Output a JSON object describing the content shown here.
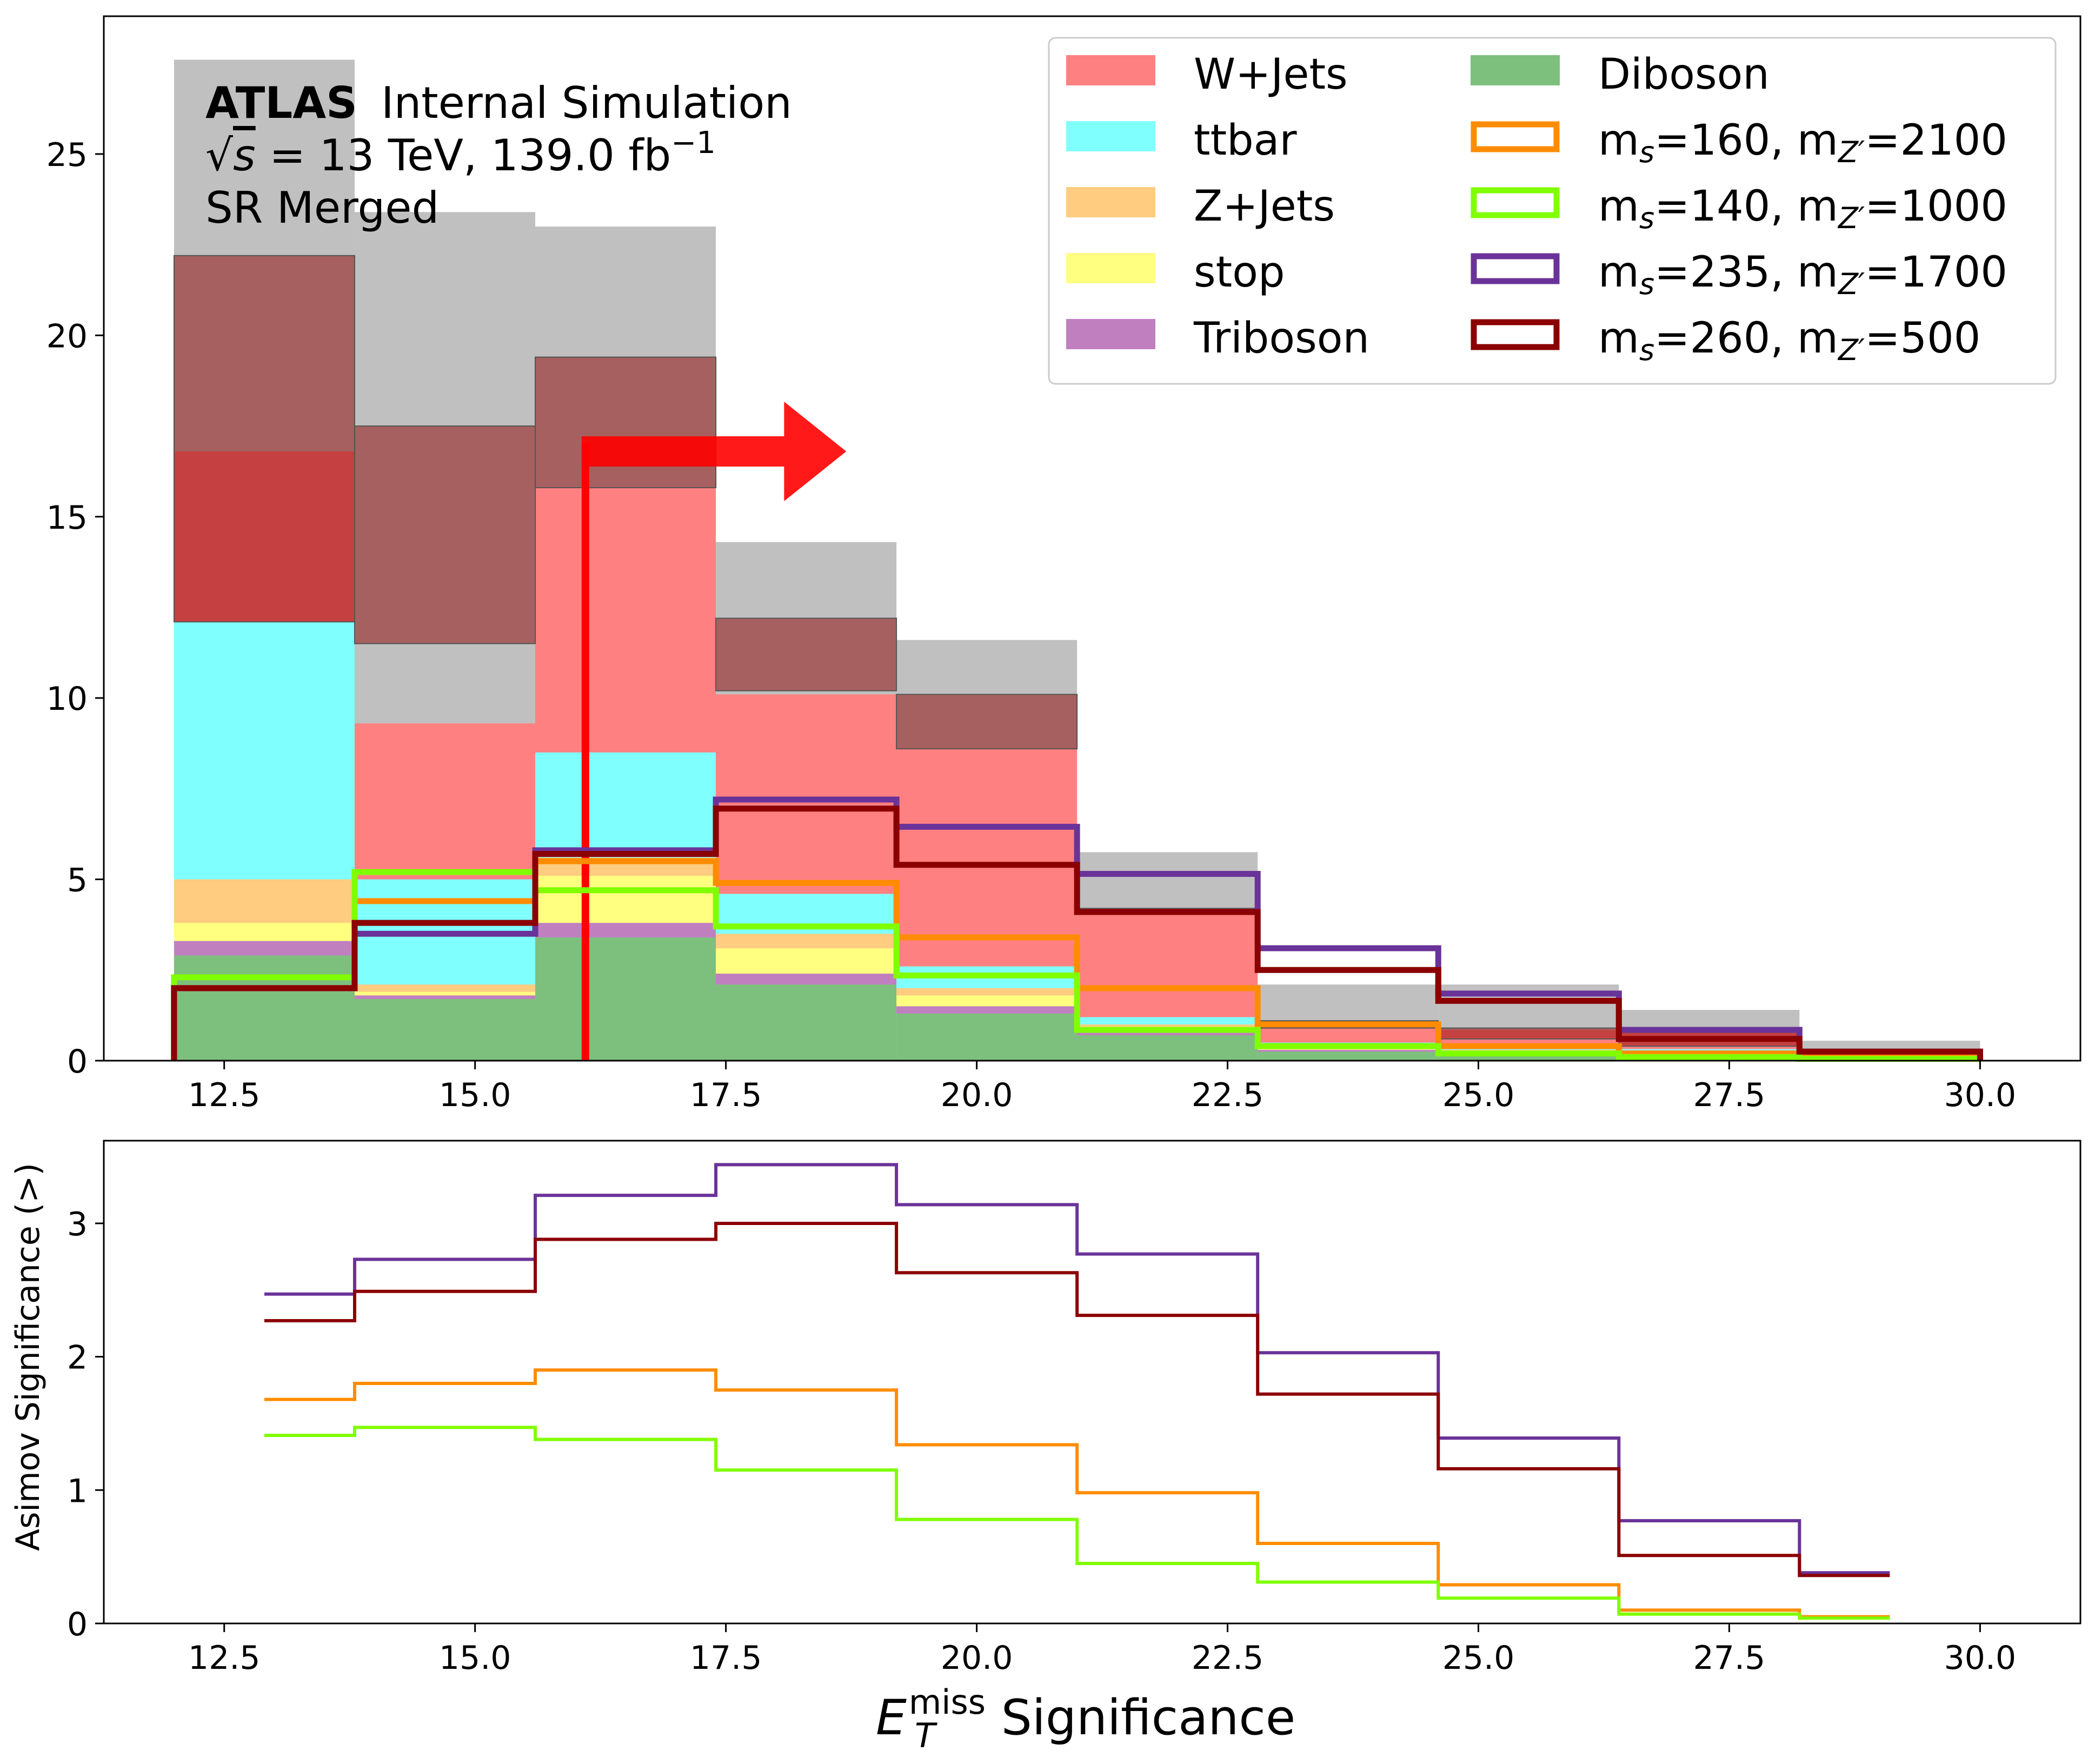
{
  "chart_data": [
    {
      "type": "histogram",
      "panel": "top",
      "annotation": {
        "atlas": "ATLAS",
        "status": "Internal Simulation",
        "energy_prefix": "√",
        "energy_var": "s",
        "energy_rest": " = 13 TeV, 139.0 fb",
        "energy_exp": "−1",
        "region": "SR Merged"
      },
      "bin_edges": [
        12.0,
        13.8,
        15.6,
        17.4,
        19.2,
        21.0,
        22.8,
        24.6,
        26.4,
        28.2,
        30.0
      ],
      "x_ticks": [
        "12.5",
        "15.0",
        "17.5",
        "20.0",
        "22.5",
        "25.0",
        "27.5",
        "30.0"
      ],
      "x_tick_values": [
        12.5,
        15.0,
        17.5,
        20.0,
        22.5,
        25.0,
        27.5,
        30.0
      ],
      "y_ticks": [
        "0",
        "5",
        "10",
        "15",
        "20",
        "25"
      ],
      "y_tick_values": [
        0,
        5,
        10,
        15,
        20,
        25
      ],
      "xlim": [
        11.3,
        31.0
      ],
      "ylim": [
        0,
        28.8
      ],
      "stack": [
        {
          "name": "Diboson",
          "color": "#7dbf7d",
          "values": [
            2.9,
            1.7,
            3.4,
            2.1,
            1.3,
            0.7,
            0.25,
            0.15,
            0.1,
            0.05
          ]
        },
        {
          "name": "Triboson",
          "color": "#c080c0",
          "values": [
            0.4,
            0.1,
            0.4,
            0.3,
            0.2,
            0.1,
            0.05,
            0.05,
            0.02,
            0.0
          ]
        },
        {
          "name": "stop",
          "color": "#ffff80",
          "values": [
            0.5,
            0.1,
            1.3,
            0.7,
            0.3,
            0.1,
            0.05,
            0.05,
            0.05,
            0.0
          ]
        },
        {
          "name": "Z+Jets",
          "color": "#ffcc80",
          "values": [
            1.2,
            0.2,
            0.5,
            0.4,
            0.2,
            0.1,
            0.05,
            0.05,
            0.05,
            0.0
          ]
        },
        {
          "name": "ttbar",
          "color": "#80ffff",
          "values": [
            7.1,
            2.9,
            2.9,
            1.1,
            0.6,
            0.2,
            0.1,
            0.1,
            0.1,
            0.05
          ]
        },
        {
          "name": "W+Jets",
          "color": "#ff8080",
          "values": [
            4.7,
            4.3,
            7.3,
            5.5,
            6.0,
            3.0,
            0.6,
            0.45,
            0.45,
            0.15
          ]
        }
      ],
      "uncertainty": {
        "color": "#8b0000",
        "down": [
          12.1,
          11.5,
          15.8,
          10.2,
          8.6,
          4.1,
          0.9,
          0.6,
          0.4,
          0.1
        ],
        "up": [
          22.2,
          17.5,
          19.4,
          12.2,
          10.1,
          4.2,
          1.1,
          0.9,
          0.9,
          0.3
        ]
      },
      "total_band": {
        "color": "#c0c0c0",
        "values": [
          27.6,
          23.4,
          23.0,
          14.3,
          11.6,
          5.75,
          2.1,
          2.1,
          1.4,
          0.55
        ]
      },
      "signals": [
        {
          "name": "m_s=160, m_{Z'}=2100",
          "color": "#ff8c00",
          "values": [
            2.0,
            4.4,
            5.5,
            4.9,
            3.4,
            2.0,
            1.0,
            0.4,
            0.2,
            0.1
          ]
        },
        {
          "name": "m_s=140, m_{Z'}=1000",
          "color": "#80ff00",
          "values": [
            2.3,
            5.2,
            4.7,
            3.7,
            2.35,
            0.85,
            0.4,
            0.2,
            0.1,
            0.05
          ]
        },
        {
          "name": "m_s=235, m_{Z'}=1700",
          "color": "#6a3399",
          "values": [
            2.0,
            3.5,
            5.8,
            7.2,
            6.45,
            5.15,
            3.1,
            1.85,
            0.85,
            0.25
          ]
        },
        {
          "name": "m_s=260, m_{Z'}=500",
          "color": "#8b0000",
          "values": [
            2.0,
            3.8,
            5.7,
            6.95,
            5.4,
            4.1,
            2.5,
            1.65,
            0.6,
            0.25
          ]
        }
      ],
      "cut": {
        "x": 16.1,
        "arrow_y": 16.8,
        "arrow_tip_x": 18.7,
        "color": "#ff0000"
      },
      "legend": {
        "position": "top-right",
        "col1": [
          "W+Jets",
          "ttbar",
          "Z+Jets",
          "stop",
          "Triboson"
        ],
        "col2_prefix": "Diboson",
        "signal_labels": [
          {
            "ms": "160",
            "mz": "2100"
          },
          {
            "ms": "140",
            "mz": "1000"
          },
          {
            "ms": "235",
            "mz": "1700"
          },
          {
            "ms": "260",
            "mz": "500"
          }
        ]
      }
    },
    {
      "type": "line",
      "panel": "bottom",
      "ylabel": "Asimov Significance (>)",
      "xlabel_main": "E",
      "xlabel_sub": "T",
      "xlabel_sup": "miss",
      "xlabel_rest": " Significance",
      "x_edges": [
        12.9,
        13.8,
        15.6,
        17.4,
        19.2,
        21.0,
        22.8,
        24.6,
        26.4,
        28.2,
        29.1
      ],
      "x_ticks": [
        "12.5",
        "15.0",
        "17.5",
        "20.0",
        "22.5",
        "25.0",
        "27.5",
        "30.0"
      ],
      "x_tick_values": [
        12.5,
        15.0,
        17.5,
        20.0,
        22.5,
        25.0,
        27.5,
        30.0
      ],
      "y_ticks": [
        "0",
        "1",
        "2",
        "3"
      ],
      "y_tick_values": [
        0,
        1,
        2,
        3
      ],
      "xlim": [
        11.3,
        31.0
      ],
      "ylim": [
        0,
        3.62
      ],
      "series": [
        {
          "color": "#ff8c00",
          "values": [
            1.68,
            1.8,
            1.9,
            1.75,
            1.34,
            0.98,
            0.6,
            0.29,
            0.1,
            0.05
          ]
        },
        {
          "color": "#80ff00",
          "values": [
            1.41,
            1.47,
            1.38,
            1.15,
            0.78,
            0.45,
            0.31,
            0.19,
            0.07,
            0.04
          ]
        },
        {
          "color": "#6a3399",
          "values": [
            2.47,
            2.73,
            3.21,
            3.44,
            3.14,
            2.77,
            2.03,
            1.39,
            0.77,
            0.38
          ]
        },
        {
          "color": "#8b0000",
          "values": [
            2.27,
            2.49,
            2.88,
            3.0,
            2.63,
            2.31,
            1.72,
            1.16,
            0.51,
            0.36
          ]
        }
      ]
    }
  ]
}
